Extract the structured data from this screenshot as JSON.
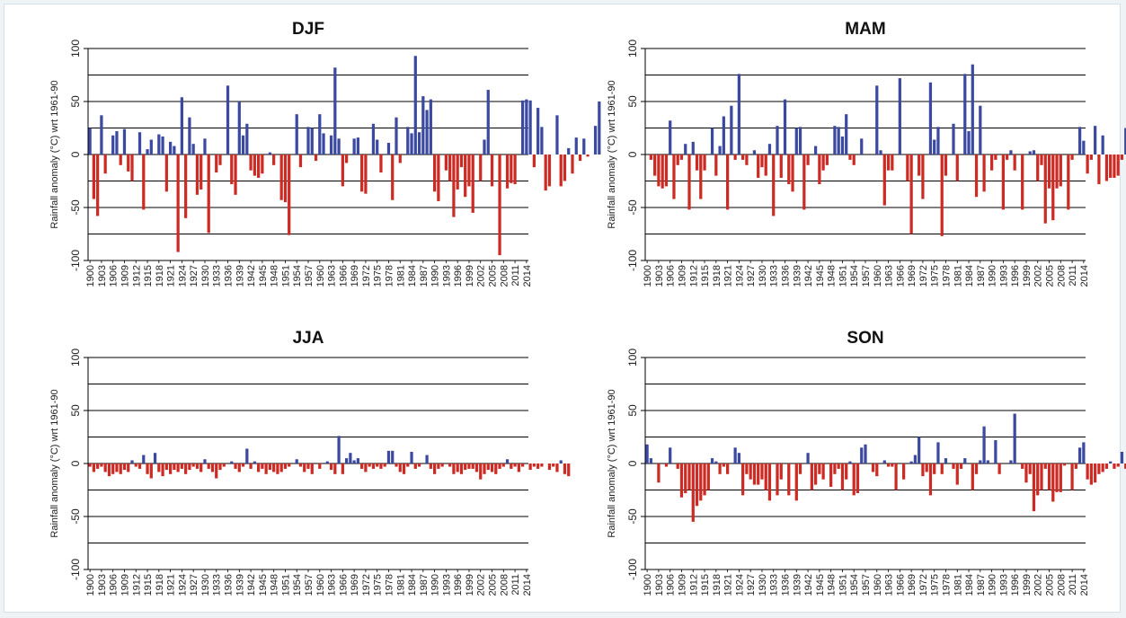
{
  "colors": {
    "positive": "#3b4aa0",
    "negative": "#cc2a23",
    "grid": "#000000"
  },
  "chart_data": [
    {
      "type": "bar",
      "title": "DJF",
      "ylabel": "Rainfall anomaly (°C) wrt 1961-90",
      "ylim": [
        -100,
        100
      ],
      "yticks": [
        "-100",
        "-50",
        "0",
        "50",
        "100"
      ],
      "grid": true,
      "x_start": 1900,
      "x_end": 2014,
      "xtick_labels": [
        "1900",
        "1903",
        "1906",
        "1909",
        "1912",
        "1915",
        "1918",
        "1921",
        "1924",
        "1927",
        "1930",
        "1933",
        "1936",
        "1939",
        "1942",
        "1945",
        "1948",
        "1951",
        "1954",
        "1957",
        "1960",
        "1963",
        "1966",
        "1969",
        "1972",
        "1975",
        "1978",
        "1981",
        "1984",
        "1987",
        "1990",
        "1993",
        "1996",
        "1999",
        "2002",
        "2005",
        "2008",
        "2011",
        "2014"
      ],
      "values": [
        25,
        -42,
        -58,
        37,
        -18,
        0,
        18,
        22,
        -10,
        24,
        -16,
        -25,
        0,
        21,
        -52,
        5,
        14,
        0,
        19,
        17,
        -35,
        12,
        8,
        -92,
        54,
        -60,
        35,
        10,
        -38,
        -33,
        15,
        -74,
        0,
        -17,
        -10,
        0,
        65,
        -28,
        -38,
        50,
        18,
        29,
        -15,
        -20,
        -22,
        -18,
        0,
        2,
        -10,
        0,
        -43,
        -45,
        -76,
        0,
        38,
        -12,
        0,
        26,
        25,
        -6,
        38,
        20,
        0,
        18,
        82,
        15,
        -30,
        -8,
        0,
        15,
        16,
        -35,
        -37,
        0,
        29,
        14,
        -17,
        0,
        11,
        -43,
        35,
        -8,
        0,
        26,
        20,
        93,
        21,
        55,
        42,
        52,
        -35,
        -44,
        0,
        -15,
        -25,
        -59,
        -33,
        -12,
        -40,
        -30,
        -55,
        0,
        -25,
        14,
        61,
        -30,
        0,
        -95,
        0,
        -32,
        -27,
        -28,
        0,
        51,
        52,
        51,
        -12,
        44,
        26,
        -34,
        -30,
        0,
        37,
        -30,
        -25,
        6,
        -18,
        16,
        -6,
        15,
        -2,
        0,
        27,
        50
      ]
    },
    {
      "type": "bar",
      "title": "MAM",
      "ylabel": "Rainfall anomaly (°C) wrt 1961-90",
      "ylim": [
        -100,
        100
      ],
      "yticks": [
        "-100",
        "-50",
        "0",
        "50",
        "100"
      ],
      "grid": true,
      "x_start": 1900,
      "x_end": 2014,
      "xtick_labels": [
        "1900",
        "1903",
        "1906",
        "1909",
        "1912",
        "1915",
        "1918",
        "1921",
        "1924",
        "1927",
        "1930",
        "1933",
        "1936",
        "1939",
        "1942",
        "1945",
        "1948",
        "1951",
        "1954",
        "1957",
        "1960",
        "1963",
        "1966",
        "1969",
        "1972",
        "1975",
        "1978",
        "1981",
        "1984",
        "1987",
        "1990",
        "1993",
        "1996",
        "1999",
        "2002",
        "2005",
        "2008",
        "2011",
        "2014"
      ],
      "values": [
        0,
        -5,
        -20,
        -30,
        -32,
        -30,
        32,
        -42,
        -10,
        -5,
        10,
        -52,
        12,
        -15,
        -42,
        -15,
        0,
        25,
        -20,
        8,
        36,
        -52,
        46,
        -5,
        76,
        -5,
        -10,
        0,
        4,
        -22,
        -12,
        -20,
        10,
        -58,
        27,
        -22,
        52,
        -28,
        -35,
        25,
        26,
        -52,
        -10,
        0,
        8,
        -28,
        -15,
        -10,
        0,
        27,
        26,
        17,
        38,
        -5,
        -10,
        0,
        15,
        0,
        0,
        0,
        65,
        4,
        -48,
        -15,
        -15,
        0,
        72,
        0,
        -25,
        -75,
        0,
        -20,
        -42,
        0,
        68,
        14,
        26,
        -77,
        -20,
        0,
        29,
        -25,
        0,
        76,
        22,
        85,
        -40,
        46,
        -35,
        0,
        -15,
        -5,
        0,
        -52,
        -5,
        4,
        -15,
        0,
        -52,
        0,
        3,
        4,
        -25,
        -10,
        -65,
        -32,
        -62,
        -32,
        -30,
        0,
        -52,
        -5,
        0,
        26,
        13,
        -18,
        -5,
        27,
        -28,
        18,
        -25,
        -22,
        -22,
        -20,
        -5,
        25,
        -18,
        -30,
        -8
      ]
    },
    {
      "type": "bar",
      "title": "JJA",
      "ylabel": "Rainfall anomaly (°C) wrt 1961-90",
      "ylim": [
        -100,
        100
      ],
      "yticks": [
        "-100",
        "-50",
        "0",
        "50",
        "100"
      ],
      "grid": true,
      "x_start": 1900,
      "x_end": 2014,
      "xtick_labels": [
        "1900",
        "1903",
        "1906",
        "1909",
        "1912",
        "1915",
        "1918",
        "1921",
        "1924",
        "1927",
        "1930",
        "1933",
        "1936",
        "1939",
        "1942",
        "1945",
        "1948",
        "1951",
        "1954",
        "1957",
        "1960",
        "1963",
        "1966",
        "1969",
        "1972",
        "1975",
        "1978",
        "1981",
        "1984",
        "1987",
        "1990",
        "1993",
        "1996",
        "1999",
        "2002",
        "2005",
        "2008",
        "2011",
        "2014"
      ],
      "values": [
        -3,
        -8,
        -5,
        -3,
        -8,
        -12,
        -10,
        -8,
        -10,
        -6,
        -8,
        3,
        -3,
        -5,
        8,
        -10,
        -14,
        10,
        -8,
        -12,
        -6,
        -10,
        -6,
        -8,
        -5,
        -10,
        -6,
        -3,
        -5,
        -8,
        4,
        -5,
        -8,
        -14,
        -6,
        -3,
        0,
        2,
        -5,
        -8,
        -3,
        14,
        -5,
        2,
        -8,
        -5,
        -10,
        -6,
        -8,
        -10,
        -8,
        -5,
        -3,
        0,
        4,
        -3,
        -8,
        -5,
        -10,
        0,
        -5,
        0,
        2,
        -6,
        -10,
        26,
        -10,
        5,
        10,
        3,
        5,
        -5,
        -8,
        -3,
        -5,
        -3,
        -5,
        -3,
        12,
        12,
        -3,
        -8,
        -10,
        -3,
        11,
        -5,
        -3,
        0,
        8,
        -5,
        -10,
        -5,
        -3,
        0,
        -3,
        -10,
        -8,
        -10,
        -6,
        -5,
        -5,
        -8,
        -15,
        -10,
        -6,
        -8,
        -10,
        -5,
        -3,
        4,
        -5,
        -3,
        -8,
        -3,
        0,
        -6,
        -3,
        -5,
        -3,
        0,
        -6,
        -3,
        -8,
        3,
        -10,
        -12
      ]
    },
    {
      "type": "bar",
      "title": "SON",
      "ylabel": "Rainfall anomaly (°C) wrt 1961-90",
      "ylim": [
        -100,
        100
      ],
      "yticks": [
        "-100",
        "-50",
        "0",
        "50",
        "100"
      ],
      "grid": true,
      "x_start": 1900,
      "x_end": 2014,
      "xtick_labels": [
        "1900",
        "1903",
        "1906",
        "1909",
        "1912",
        "1915",
        "1918",
        "1921",
        "1924",
        "1927",
        "1930",
        "1933",
        "1936",
        "1939",
        "1942",
        "1945",
        "1948",
        "1951",
        "1954",
        "1957",
        "1960",
        "1963",
        "1966",
        "1969",
        "1972",
        "1975",
        "1978",
        "1981",
        "1984",
        "1987",
        "1990",
        "1993",
        "1996",
        "1999",
        "2002",
        "2005",
        "2008",
        "2011",
        "2014"
      ],
      "values": [
        18,
        5,
        0,
        -18,
        0,
        -3,
        15,
        0,
        -5,
        -32,
        -28,
        -25,
        -55,
        -40,
        -35,
        -30,
        -25,
        5,
        2,
        -10,
        -3,
        -10,
        0,
        15,
        10,
        -30,
        -10,
        -15,
        -20,
        -20,
        -15,
        -25,
        -35,
        0,
        -30,
        -15,
        0,
        -30,
        0,
        -35,
        -10,
        0,
        10,
        -25,
        -20,
        -10,
        -15,
        0,
        -22,
        -10,
        -5,
        -25,
        -15,
        2,
        -30,
        -28,
        15,
        18,
        0,
        -8,
        -12,
        0,
        3,
        -3,
        -3,
        -25,
        0,
        -15,
        0,
        2,
        8,
        25,
        -12,
        -8,
        -30,
        -10,
        20,
        -10,
        5,
        0,
        -5,
        -20,
        -5,
        5,
        0,
        -25,
        -10,
        3,
        35,
        3,
        0,
        22,
        -10,
        0,
        0,
        3,
        47,
        0,
        -5,
        -18,
        -10,
        -45,
        -30,
        -25,
        -5,
        -25,
        -36,
        -27,
        -27,
        -2,
        0,
        -25,
        -5,
        15,
        20,
        -15,
        -20,
        -18,
        -10,
        -8,
        -5,
        2,
        -5,
        -3,
        11,
        -5,
        -10,
        -15,
        -8,
        -5,
        -10
      ]
    }
  ]
}
